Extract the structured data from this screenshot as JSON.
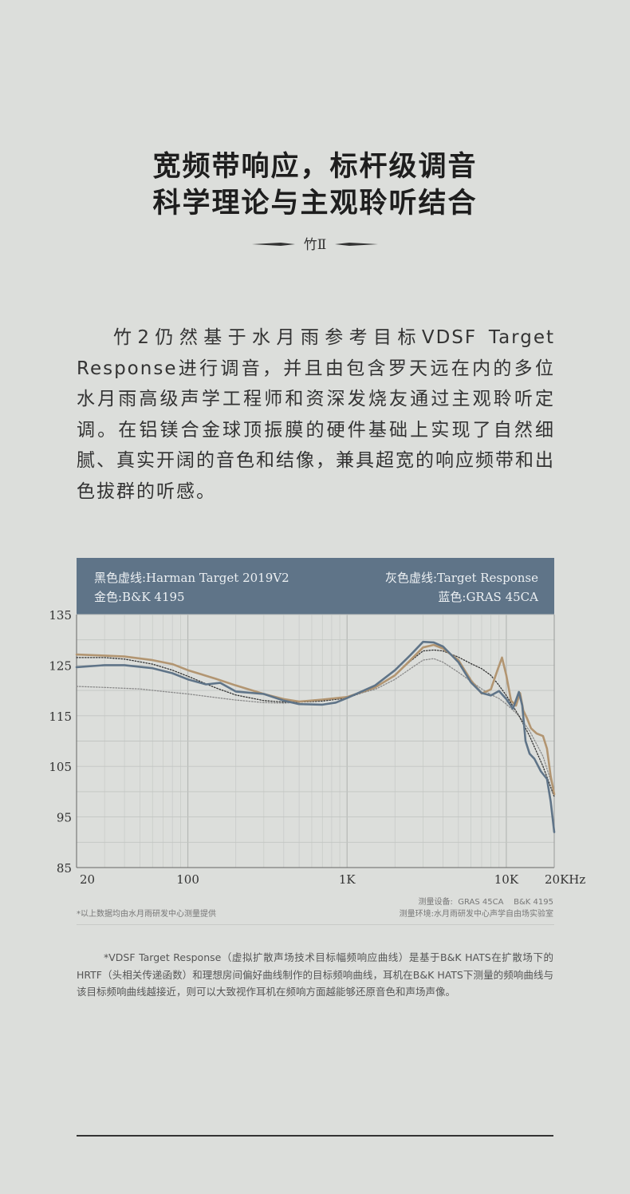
{
  "headline": {
    "line1": "宽频带响应，标杆级调音",
    "line2": "科学理论与主观聆听结合"
  },
  "divider_label": "竹Ⅱ",
  "intro": "竹2仍然基于水月雨参考目标VDSF Target Response进行调音，并且由包含罗天远在内的多位水月雨高级声学工程师和资深发烧友通过主观聆听定调。在铝镁合金球顶振膜的硬件基础上实现了自然细腻、真实开阔的音色和结像，兼具超宽的响应频带和出色拔群的听感。",
  "legend": {
    "harman": "黑色虚线:Harman Target 2019V2",
    "target": "灰色虚线:Target Response",
    "bk": "金色:B&K 4195",
    "gras": "蓝色:GRAS 45CA"
  },
  "chart_data": {
    "type": "line",
    "x_scale": "log",
    "xlim": [
      20,
      20000
    ],
    "ylim": [
      85,
      135
    ],
    "x_ticks": [
      {
        "value": 20,
        "label": "20"
      },
      {
        "value": 100,
        "label": "100"
      },
      {
        "value": 1000,
        "label": "1K"
      },
      {
        "value": 10000,
        "label": "10K"
      },
      {
        "value": 20000,
        "label": "20KHz"
      }
    ],
    "y_ticks": [
      {
        "value": 85,
        "label": "85"
      },
      {
        "value": 95,
        "label": "95"
      },
      {
        "value": 105,
        "label": "105"
      },
      {
        "value": 115,
        "label": "115"
      },
      {
        "value": 125,
        "label": "125"
      },
      {
        "value": 135,
        "label": "135"
      }
    ],
    "grid": true,
    "legend_position": "top",
    "series": [
      {
        "name": "Target Response",
        "color": "#8a8a8a",
        "style": "dotted",
        "points": [
          [
            20,
            120.8
          ],
          [
            30,
            120.6
          ],
          [
            50,
            120.3
          ],
          [
            70,
            119.8
          ],
          [
            100,
            119.3
          ],
          [
            150,
            118.6
          ],
          [
            200,
            118.1
          ],
          [
            300,
            117.6
          ],
          [
            400,
            117.5
          ],
          [
            500,
            117.7
          ],
          [
            700,
            118.1
          ],
          [
            1000,
            118.8
          ],
          [
            1500,
            120.2
          ],
          [
            2000,
            122.2
          ],
          [
            2500,
            124.3
          ],
          [
            3000,
            126.0
          ],
          [
            3500,
            126.3
          ],
          [
            4000,
            125.6
          ],
          [
            5000,
            123.6
          ],
          [
            6000,
            121.8
          ],
          [
            7000,
            120.3
          ],
          [
            8000,
            119.2
          ],
          [
            9000,
            118.4
          ],
          [
            10000,
            117.3
          ],
          [
            12000,
            115.0
          ],
          [
            14000,
            112.0
          ],
          [
            17000,
            107.0
          ],
          [
            20000,
            100.0
          ]
        ]
      },
      {
        "name": "Harman Target 2019V2",
        "color": "#333333",
        "style": "dotted",
        "points": [
          [
            20,
            126.5
          ],
          [
            30,
            126.5
          ],
          [
            40,
            126.2
          ],
          [
            60,
            125.2
          ],
          [
            80,
            124.0
          ],
          [
            100,
            122.8
          ],
          [
            150,
            120.5
          ],
          [
            200,
            119.1
          ],
          [
            300,
            118.0
          ],
          [
            400,
            117.7
          ],
          [
            500,
            117.7
          ],
          [
            700,
            117.9
          ],
          [
            1000,
            118.5
          ],
          [
            1500,
            120.5
          ],
          [
            2000,
            123.0
          ],
          [
            2500,
            125.8
          ],
          [
            3000,
            127.8
          ],
          [
            3500,
            128.0
          ],
          [
            4000,
            127.8
          ],
          [
            5000,
            126.6
          ],
          [
            6000,
            125.3
          ],
          [
            7000,
            124.3
          ],
          [
            8000,
            123.0
          ],
          [
            9000,
            121.0
          ],
          [
            10000,
            119.0
          ],
          [
            12000,
            115.0
          ],
          [
            14000,
            111.0
          ],
          [
            17000,
            105.0
          ],
          [
            20000,
            99.0
          ]
        ]
      },
      {
        "name": "B&K 4195",
        "color": "#b29571",
        "style": "solid",
        "points": [
          [
            20,
            127.1
          ],
          [
            30,
            126.9
          ],
          [
            40,
            126.7
          ],
          [
            60,
            126.0
          ],
          [
            80,
            125.2
          ],
          [
            100,
            124.0
          ],
          [
            150,
            122.3
          ],
          [
            200,
            121.0
          ],
          [
            300,
            119.3
          ],
          [
            400,
            118.3
          ],
          [
            500,
            117.8
          ],
          [
            700,
            118.2
          ],
          [
            1000,
            118.7
          ],
          [
            1500,
            120.6
          ],
          [
            2000,
            123.0
          ],
          [
            2500,
            126.0
          ],
          [
            3000,
            128.5
          ],
          [
            3500,
            129.0
          ],
          [
            4000,
            128.3
          ],
          [
            5000,
            126.0
          ],
          [
            6000,
            122.0
          ],
          [
            7000,
            119.4
          ],
          [
            8000,
            120.2
          ],
          [
            8800,
            124.0
          ],
          [
            9400,
            126.5
          ],
          [
            10000,
            123.0
          ],
          [
            10700,
            118.0
          ],
          [
            11500,
            117.0
          ],
          [
            12200,
            119.5
          ],
          [
            12800,
            116.0
          ],
          [
            13500,
            114.5
          ],
          [
            14300,
            112.5
          ],
          [
            15500,
            111.5
          ],
          [
            17000,
            111.0
          ],
          [
            18000,
            108.5
          ],
          [
            19000,
            103.0
          ],
          [
            20000,
            99.5
          ]
        ]
      },
      {
        "name": "GRAS 45CA",
        "color": "#5f7488",
        "style": "solid",
        "points": [
          [
            20,
            124.6
          ],
          [
            30,
            125.0
          ],
          [
            40,
            125.0
          ],
          [
            60,
            124.4
          ],
          [
            80,
            123.4
          ],
          [
            100,
            122.2
          ],
          [
            130,
            121.2
          ],
          [
            160,
            121.5
          ],
          [
            200,
            119.8
          ],
          [
            300,
            119.3
          ],
          [
            400,
            118.0
          ],
          [
            500,
            117.3
          ],
          [
            700,
            117.2
          ],
          [
            850,
            117.6
          ],
          [
            1000,
            118.5
          ],
          [
            1500,
            121.0
          ],
          [
            2000,
            124.0
          ],
          [
            2500,
            127.0
          ],
          [
            3000,
            129.6
          ],
          [
            3500,
            129.5
          ],
          [
            4000,
            128.7
          ],
          [
            5000,
            125.6
          ],
          [
            6000,
            121.6
          ],
          [
            7000,
            119.5
          ],
          [
            8000,
            119.0
          ],
          [
            9000,
            119.9
          ],
          [
            10000,
            118.3
          ],
          [
            11000,
            116.4
          ],
          [
            12000,
            119.7
          ],
          [
            12600,
            117.0
          ],
          [
            13200,
            110.0
          ],
          [
            14000,
            107.5
          ],
          [
            15000,
            106.5
          ],
          [
            16500,
            104.0
          ],
          [
            18000,
            102.5
          ],
          [
            19000,
            98.0
          ],
          [
            20000,
            92.0
          ]
        ]
      }
    ]
  },
  "source_note": "*以上数据均由水月雨研发中心测量提供",
  "meas_device": "测量设备:  GRAS 45CA    B&K 4195",
  "meas_env": "测量环境:水月雨研发中心声学自由场实验室",
  "footnote": "*VDSF Target Response（虚拟扩散声场技术目标幅频响应曲线）是基于B&K HATS在扩散场下的HRTF（头相关传递函数）和理想房间偏好曲线制作的目标频响曲线，耳机在B&K HATS下测量的频响曲线与该目标频响曲线越接近，则可以大致视作耳机在频响方面越能够还原音色和声场声像。"
}
